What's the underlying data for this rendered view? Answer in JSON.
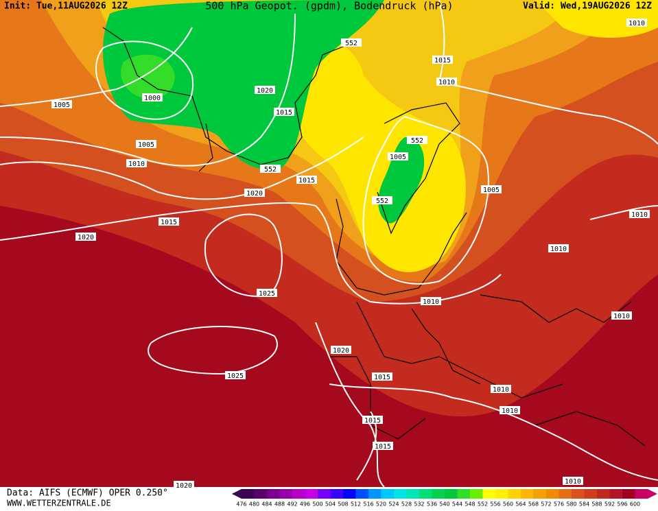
{
  "header": {
    "init": "Init: Tue,11AUG2026 12Z",
    "title": "500 hPa Geopot. (gpdm), Bodendruck (hPa)",
    "valid": "Valid: Wed,19AUG2026 12Z"
  },
  "isobar_labels": [
    "1010",
    "1015",
    "1010",
    "552",
    "1005",
    "1000",
    "1020",
    "1015",
    "1005",
    "1010",
    "552",
    "1015",
    "552",
    "1005",
    "552",
    "1005",
    "1020",
    "1015",
    "1020",
    "1010",
    "1010",
    "1025",
    "1010",
    "1010",
    "1020",
    "1025",
    "1015",
    "1010",
    "1015",
    "1010",
    "1015",
    "1010",
    "1020"
  ],
  "footer": {
    "source": "Data: AIFS (ECMWF) OPER 0.250°",
    "website": "WWW.WETTERZENTRALE.DE"
  },
  "scale": {
    "labels": [
      "476",
      "480",
      "484",
      "488",
      "492",
      "496",
      "500",
      "504",
      "508",
      "512",
      "516",
      "520",
      "524",
      "528",
      "532",
      "536",
      "540",
      "544",
      "548",
      "552",
      "556",
      "560",
      "564",
      "568",
      "572",
      "576",
      "580",
      "584",
      "588",
      "592",
      "596",
      "600"
    ],
    "colors": [
      "#3c0050",
      "#5a006e",
      "#78008c",
      "#9600aa",
      "#b400c8",
      "#c800e6",
      "#7800ff",
      "#3c00ff",
      "#0000ff",
      "#0050ff",
      "#0096ff",
      "#00c8ff",
      "#00e6e6",
      "#00e6b4",
      "#00dc78",
      "#00d250",
      "#00c83c",
      "#32dc28",
      "#64f000",
      "#ffff00",
      "#fff000",
      "#ffd200",
      "#ffb400",
      "#f5a000",
      "#f08c00",
      "#e66e14",
      "#dc501e",
      "#d23c1e",
      "#c3281e",
      "#b41423",
      "#a0001e",
      "#c80064"
    ]
  }
}
